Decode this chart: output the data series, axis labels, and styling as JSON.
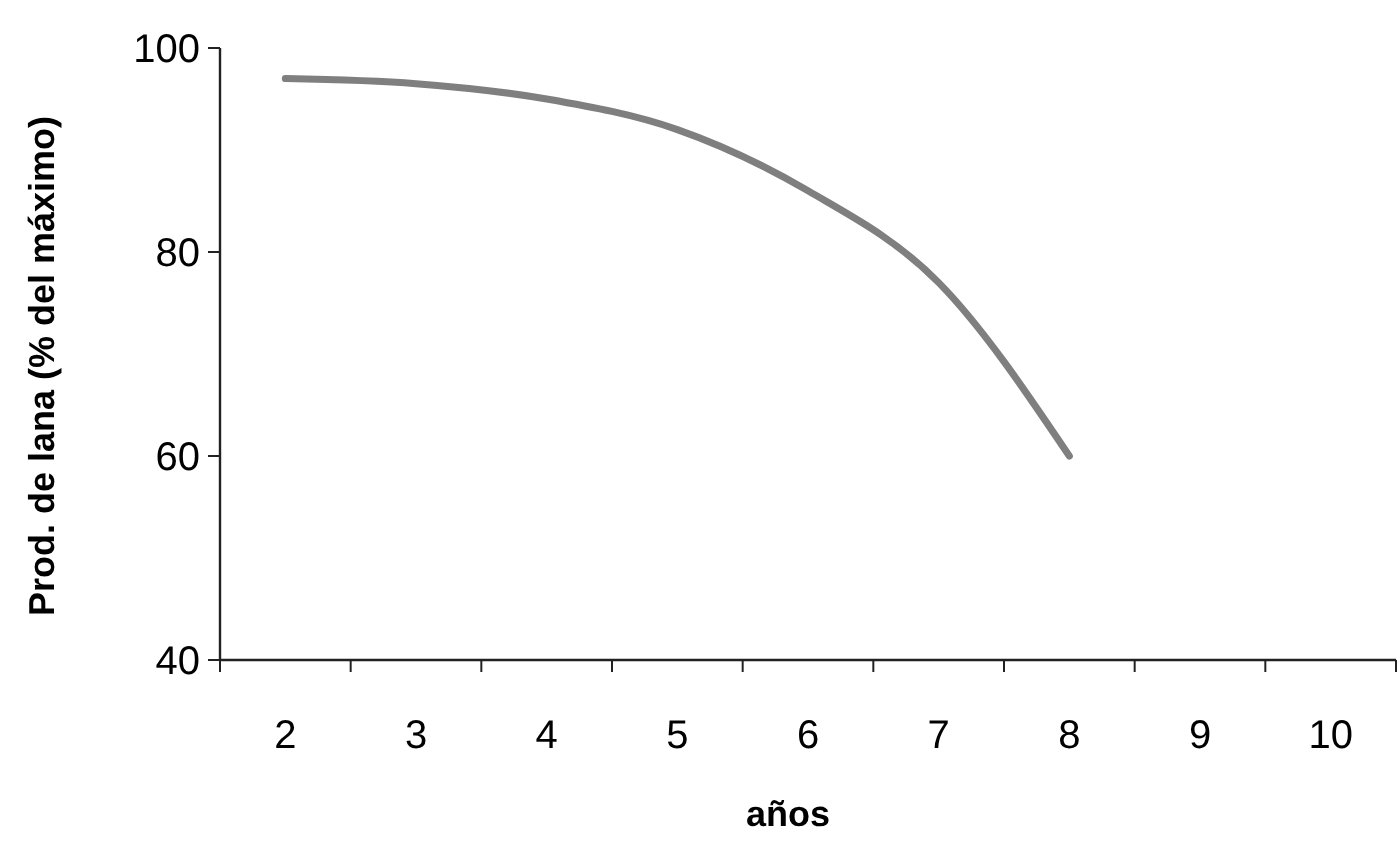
{
  "chart_data": {
    "type": "line",
    "xlabel": "años",
    "ylabel": "Prod. de lana (% del máximo)",
    "categories": [
      "2",
      "3",
      "4",
      "5",
      "6",
      "7",
      "8",
      "9",
      "10"
    ],
    "series": [
      {
        "color": "#7f7f7f",
        "values": [
          97,
          96.5,
          95,
          92,
          86,
          77,
          60,
          null,
          null
        ]
      }
    ],
    "ylim": [
      40,
      100
    ],
    "yticks": [
      40,
      60,
      80,
      100
    ],
    "grid": false,
    "line_style": "solid"
  }
}
